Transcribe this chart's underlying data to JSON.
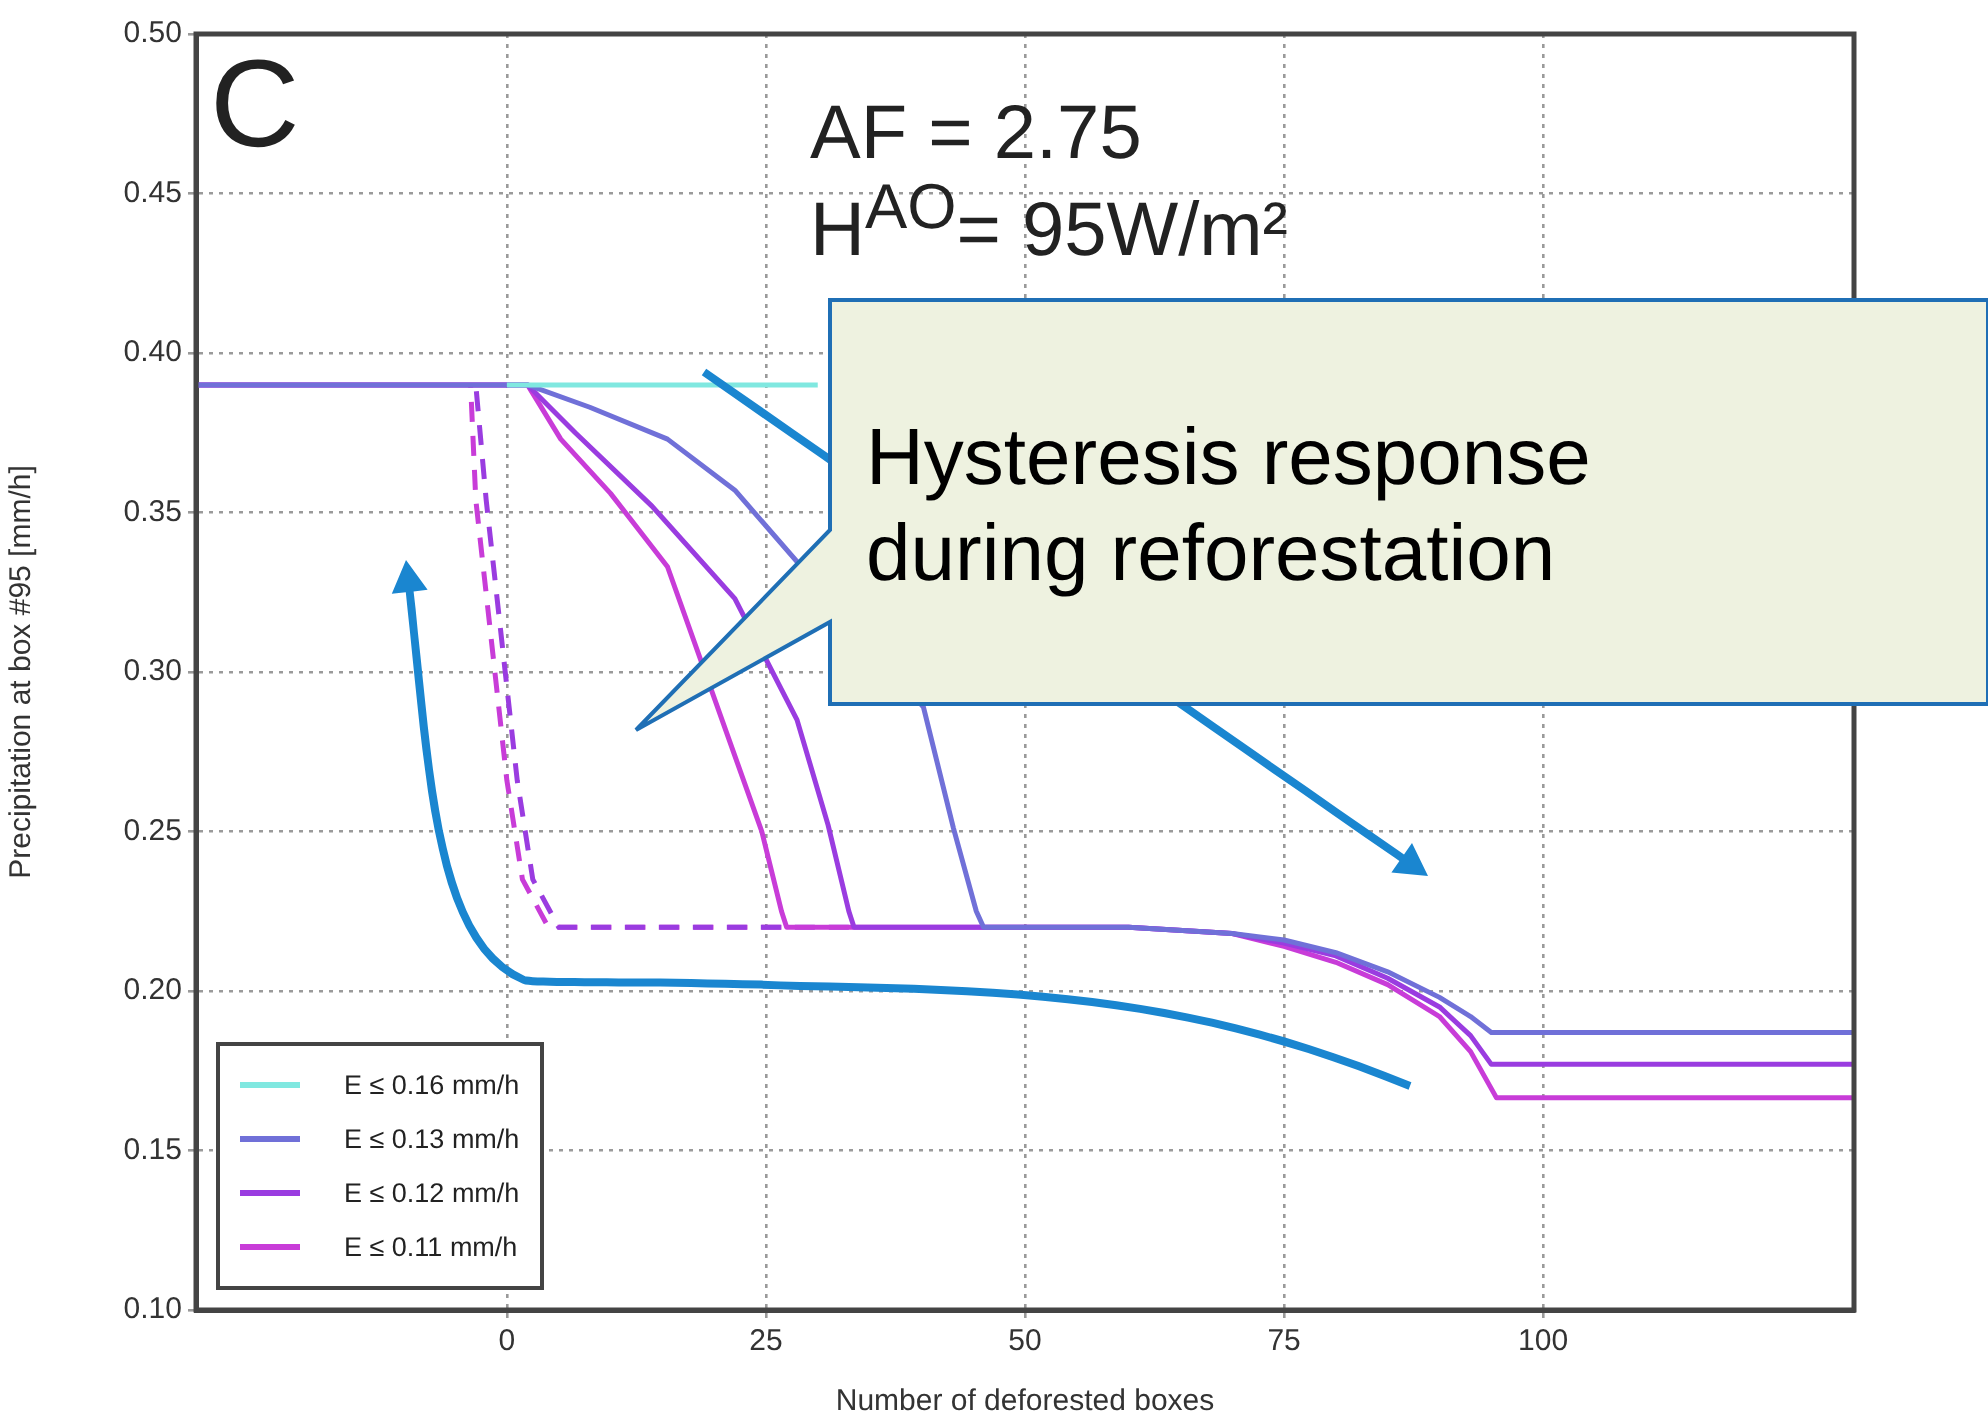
{
  "chart_data": {
    "type": "line",
    "xlabel": "Number of deforested boxes",
    "ylabel": "Precipitation at box #95 [mm/h]",
    "xlim": [
      -30,
      130
    ],
    "xticks": [
      0,
      25,
      50,
      75,
      100
    ],
    "ylim": [
      0.1,
      0.5
    ],
    "yticks": [
      {
        "value": 0.1,
        "label": "0.10"
      },
      {
        "value": 0.15,
        "label": "0.15"
      },
      {
        "value": 0.2,
        "label": "0.20"
      },
      {
        "value": 0.25,
        "label": "0.25"
      },
      {
        "value": 0.3,
        "label": "0.30"
      },
      {
        "value": 0.35,
        "label": "0.35"
      },
      {
        "value": 0.4,
        "label": "0.40"
      },
      {
        "value": 0.45,
        "label": "0.45"
      },
      {
        "value": 0.5,
        "label": "0.50"
      }
    ],
    "grid": true,
    "legend": "bottom left",
    "marker": "none",
    "annotations": [
      "C",
      "AF = 2.75",
      "H$^{AO}$= 95W/m²",
      "Hysteresis response during reforestation"
    ],
    "series": [
      {
        "name": "E ≤ 0.16 mm/h",
        "color": "#80e8e0",
        "x": [
          0,
          30
        ],
        "values": [
          0.39,
          0.39
        ]
      },
      {
        "name": "E ≤ 0.13 mm/h",
        "color": "#7070d8",
        "x": [
          -30,
          0,
          2,
          8,
          15.5,
          22,
          40.2,
          43.1,
          45.3,
          46,
          60,
          70,
          75,
          80,
          85,
          90,
          93,
          95,
          130
        ],
        "values": [
          0.39,
          0.39,
          0.39,
          0.383,
          0.373,
          0.357,
          0.289,
          0.251,
          0.225,
          0.22,
          0.22,
          0.218,
          0.216,
          0.212,
          0.206,
          0.198,
          0.192,
          0.187,
          0.187
        ]
      },
      {
        "name": "E ≤ 0.12 mm/h",
        "color": "#9a3ce0",
        "x": [
          -30,
          0,
          2,
          6.6,
          14,
          22,
          28,
          31,
          33,
          33.5,
          60,
          70,
          75,
          80,
          85,
          90,
          93,
          95,
          130
        ],
        "values": [
          0.39,
          0.39,
          0.39,
          0.375,
          0.352,
          0.323,
          0.285,
          0.252,
          0.225,
          0.22,
          0.22,
          0.218,
          0.215,
          0.211,
          0.204,
          0.195,
          0.186,
          0.177,
          0.177
        ]
      },
      {
        "name": "E ≤ 0.11 mm/h",
        "color": "#c83cd8",
        "x": [
          -30,
          0,
          2,
          5.2,
          10,
          15.5,
          24.6,
          26.5,
          27,
          60,
          70,
          75,
          80,
          85,
          90,
          93,
          95.5,
          130
        ],
        "values": [
          0.39,
          0.39,
          0.39,
          0.373,
          0.356,
          0.333,
          0.25,
          0.225,
          0.22,
          0.22,
          0.218,
          0.214,
          0.209,
          0.202,
          0.192,
          0.181,
          0.1665,
          0.1665
        ]
      },
      {
        "color": "#9a3ce0",
        "line_style": "dashed",
        "x": [
          33,
          5,
          2.5,
          1,
          -0.5,
          -2,
          -3
        ],
        "values": [
          0.22,
          0.22,
          0.235,
          0.266,
          0.31,
          0.354,
          0.39
        ]
      },
      {
        "color": "#c83cd8",
        "line_style": "dashed",
        "x": [
          26.5,
          4,
          1.5,
          0,
          -1.5,
          -3,
          -3.5
        ],
        "values": [
          0.22,
          0.22,
          0.235,
          0.266,
          0.31,
          0.354,
          0.39
        ]
      }
    ]
  }
}
